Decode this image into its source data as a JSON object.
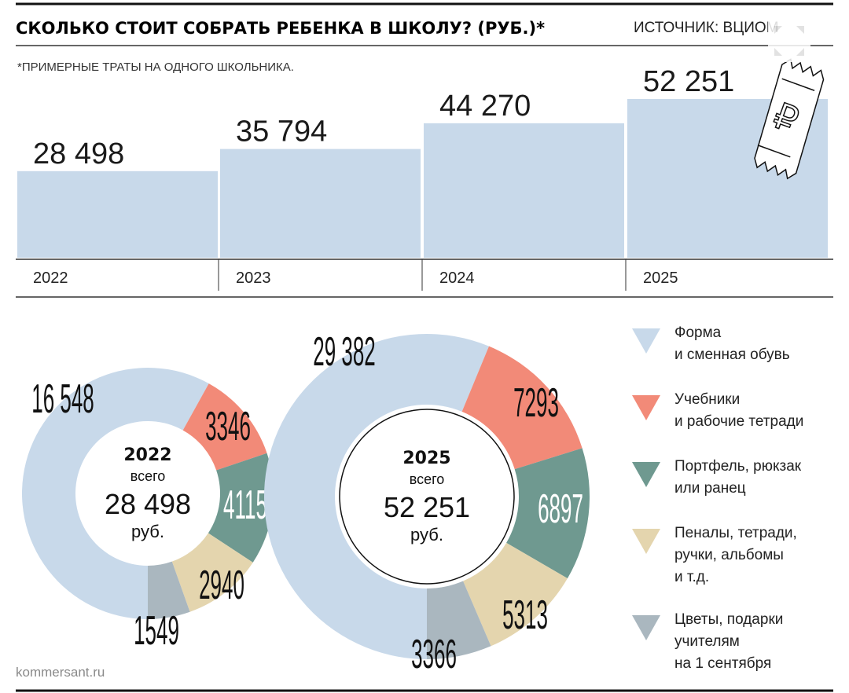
{
  "header": {
    "title": "СКОЛЬКО СТОИТ СОБРАТЬ РЕБЕНКА В ШКОЛУ? (РУБ.)*",
    "source": "ИСТОЧНИК: ВЦИОМ",
    "note": "*ПРИМЕРНЫЕ ТРАТЫ НА ОДНОГО ШКОЛЬНИКА."
  },
  "credit": "kommersant.ru",
  "colors": {
    "bar": "#c8d9ea",
    "uniform": "#c8d9ea",
    "textbooks": "#f28a78",
    "backpack": "#6f9990",
    "stationery": "#e4d5ae",
    "gifts": "#aab7bf"
  },
  "icons": [
    "ruble-ticket-icon",
    "expand-arrows-icon"
  ],
  "chart_data": [
    {
      "type": "bar",
      "categories": [
        "2022",
        "2023",
        "2024",
        "2025"
      ],
      "values": [
        28498,
        35794,
        44270,
        52251
      ],
      "value_labels": [
        "28 498",
        "35 794",
        "44 270",
        "52 251"
      ],
      "ylim": [
        0,
        56000
      ],
      "grid": false
    },
    {
      "type": "pie",
      "variant": "donut",
      "center_year": "2022",
      "center_caption": "всего",
      "center_total": "28 498",
      "center_unit": "руб.",
      "labels": [
        "Форма и сменная обувь",
        "Учебники и рабочие тетради",
        "Портфель, рюкзак или ранец",
        "Пеналы, тетради, ручки, альбомы и т.д.",
        "Цветы, подарки учителям на 1 сентября"
      ],
      "values": [
        16548,
        3346,
        4115,
        2940,
        1549
      ],
      "value_labels": [
        "16 548",
        "3346",
        "4115",
        "2940",
        "1549"
      ]
    },
    {
      "type": "pie",
      "variant": "donut",
      "center_year": "2025",
      "center_caption": "всего",
      "center_total": "52 251",
      "center_unit": "руб.",
      "labels": [
        "Форма и сменная обувь",
        "Учебники и рабочие тетради",
        "Портфель, рюкзак или ранец",
        "Пеналы, тетради, ручки, альбомы и т.д.",
        "Цветы, подарки учителям на 1 сентября"
      ],
      "values": [
        29382,
        7293,
        6897,
        5313,
        3366
      ],
      "value_labels": [
        "29 382",
        "7293",
        "6897",
        "5313",
        "3366"
      ]
    }
  ],
  "legend": [
    {
      "label": "Форма\nи сменная обувь",
      "color": "#c8d9ea"
    },
    {
      "label": "Учебники\nи рабочие тетради",
      "color": "#f28a78"
    },
    {
      "label": "Портфель, рюкзак\nили ранец",
      "color": "#6f9990"
    },
    {
      "label": "Пеналы, тетради,\nручки, альбомы\nи т.д.",
      "color": "#e4d5ae"
    },
    {
      "label": "Цветы, подарки\nучителям\nна 1 сентября",
      "color": "#aab7bf"
    }
  ]
}
